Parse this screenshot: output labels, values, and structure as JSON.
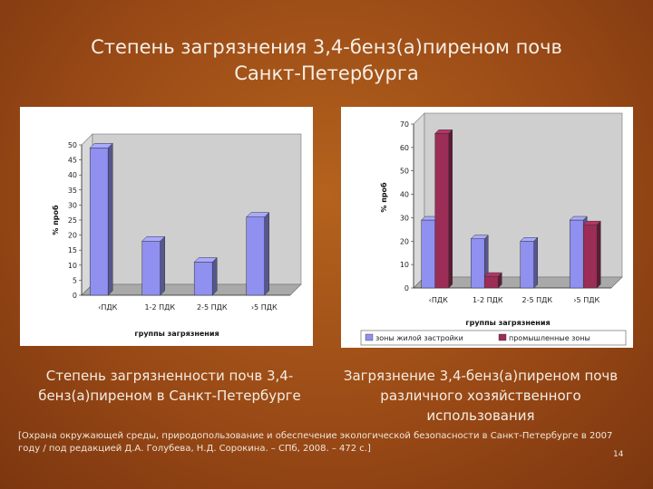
{
  "slide": {
    "title_line1": "Степень загрязнения 3,4-бенз(а)пиреном почв",
    "title_line2": "Санкт-Петербурга",
    "caption_left": "Степень загрязненности почв 3,4-бенз(а)пиреном в Санкт-Петербурге",
    "caption_right": "Загрязнение 3,4-бенз(а)пиреном почв различного хозяйственного использования",
    "source": "[Охрана окружающей среды, природопользование и обеспечение экологической безопасности в Санкт-Петербурге в 2007 году / под редакцией Д.А. Голубева, Н.Д. Сорокина. – СПб, 2008. – 472 с.]",
    "page_number": "14"
  },
  "chart_data": [
    {
      "type": "bar",
      "categories": [
        "‹ПДК",
        "1-2 ПДК",
        "2-5 ПДК",
        "›5 ПДК"
      ],
      "series": [
        {
          "values": [
            49,
            18,
            11,
            26
          ],
          "color": "#8f90f0"
        }
      ],
      "xlabel": "группы загрязнения",
      "ylabel": "% проб",
      "ylim": [
        0,
        50
      ],
      "yticks": [
        0,
        5,
        10,
        15,
        20,
        25,
        30,
        35,
        40,
        45,
        50
      ],
      "grid": false,
      "style": "3d"
    },
    {
      "type": "bar",
      "categories": [
        "‹ПДК",
        "1-2 ПДК",
        "2-5 ПДК",
        "›5 ПДК"
      ],
      "series": [
        {
          "name": "зоны жилой застройки",
          "values": [
            29,
            21,
            20,
            29
          ],
          "color": "#8f90f0"
        },
        {
          "name": "промышленные зоны",
          "values": [
            66,
            5,
            0,
            27
          ],
          "color": "#9b2d57"
        }
      ],
      "xlabel": "группы загрязнения",
      "ylabel": "% проб",
      "ylim": [
        0,
        70
      ],
      "yticks": [
        0,
        10,
        20,
        30,
        40,
        50,
        60,
        70
      ],
      "grid": false,
      "legend": "bottom",
      "style": "3d"
    }
  ]
}
